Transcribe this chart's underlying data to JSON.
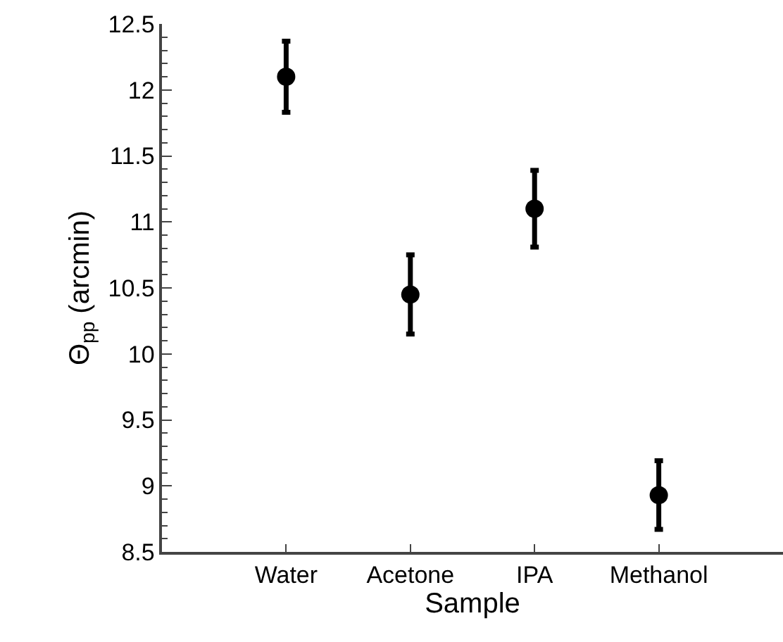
{
  "chart_data": {
    "type": "scatter",
    "xlabel": "Sample",
    "ylabel": "Θ$_{pp}$ (arcmin)",
    "categories": [
      "Water",
      "Acetone",
      "IPA",
      "Methanol"
    ],
    "series": [
      {
        "color": "#000000",
        "values": [
          12.1,
          10.45,
          11.1,
          8.93
        ],
        "errors": [
          0.27,
          0.3,
          0.29,
          0.26
        ]
      }
    ],
    "ylim": [
      8.5,
      12.5
    ],
    "yticks": [
      8.5,
      9,
      9.5,
      10,
      10.5,
      11,
      11.5,
      12,
      12.5
    ],
    "marker": "circle"
  }
}
